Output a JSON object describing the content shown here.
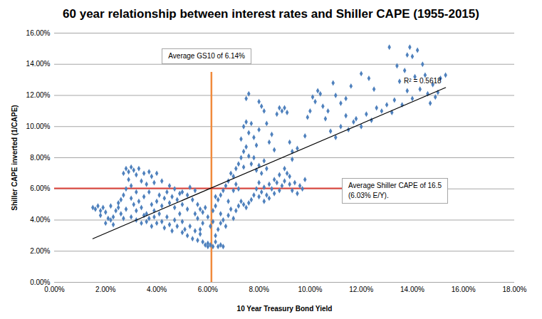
{
  "chart_data": {
    "type": "scatter",
    "title": "60 year relationship between interest rates and Shiller CAPE (1955-2015)",
    "x_label": "10 Year Treasury Bond Yield",
    "y_label": "Shiller CAPE inverted (1/CAPE)",
    "xlim": [
      0,
      18
    ],
    "ylim": [
      0,
      16
    ],
    "xticks": [
      {
        "value": 0,
        "label": "0.00%"
      },
      {
        "value": 2,
        "label": "2.00%"
      },
      {
        "value": 4,
        "label": "4.00%"
      },
      {
        "value": 6,
        "label": "6.00%"
      },
      {
        "value": 8,
        "label": "8.00%"
      },
      {
        "value": 10,
        "label": "10.00%"
      },
      {
        "value": 12,
        "label": "12.00%"
      },
      {
        "value": 14,
        "label": "14.00%"
      },
      {
        "value": 16,
        "label": "16.00%"
      },
      {
        "value": 18,
        "label": "18.00%"
      }
    ],
    "yticks": [
      {
        "value": 0,
        "label": "0.00%"
      },
      {
        "value": 2,
        "label": "2.00%"
      },
      {
        "value": 4,
        "label": "4.00%"
      },
      {
        "value": 6,
        "label": "6.00%"
      },
      {
        "value": 8,
        "label": "8.00%"
      },
      {
        "value": 10,
        "label": "10.00%"
      },
      {
        "value": 12,
        "label": "12.00%"
      },
      {
        "value": 14,
        "label": "14.00%"
      },
      {
        "value": 16,
        "label": "16.00%"
      }
    ],
    "grid": true,
    "marker": "diamond",
    "color": "#4f81bd",
    "x": [
      1.5,
      1.6,
      1.7,
      1.8,
      1.9,
      2.0,
      1.8,
      2.1,
      2.2,
      2.0,
      2.3,
      2.4,
      2.5,
      2.2,
      2.6,
      2.7,
      2.3,
      2.5,
      2.6,
      2.8,
      2.7,
      2.8,
      2.9,
      3.0,
      3.1,
      3.2,
      2.9,
      3.3,
      3.5,
      3.4,
      3.0,
      2.8,
      3.6,
      3.2,
      2.7,
      3.8,
      3.9,
      4.0,
      4.2,
      3.7,
      3.0,
      3.1,
      3.2,
      3.3,
      3.4,
      3.5,
      3.6,
      3.7,
      3.8,
      3.9,
      3.0,
      3.2,
      3.4,
      3.5,
      3.6,
      3.7,
      3.8,
      3.9,
      4.0,
      4.1,
      4.0,
      4.1,
      4.2,
      4.3,
      4.4,
      4.5,
      4.6,
      4.7,
      4.8,
      4.9,
      4.2,
      4.3,
      4.4,
      4.5,
      4.6,
      4.7,
      4.8,
      4.9,
      5.0,
      5.1,
      4.5,
      4.7,
      5.0,
      5.2,
      5.3,
      5.5,
      5.0,
      5.2,
      5.4,
      5.6,
      5.0,
      5.2,
      5.3,
      5.4,
      5.5,
      5.6,
      5.7,
      5.8,
      5.9,
      6.0,
      5.5,
      5.6,
      5.7,
      5.8,
      5.9,
      6.0,
      5.8,
      6.1,
      6.2,
      5.7,
      6.0,
      6.1,
      6.2,
      6.3,
      6.4,
      6.5,
      6.6,
      6.3,
      6.4,
      6.5,
      6.2,
      6.3,
      6.4,
      6.5,
      6.6,
      6.7,
      6.3,
      6.5,
      6.8,
      6.9,
      6.6,
      6.7,
      6.8,
      7.0,
      7.1,
      7.2,
      7.3,
      7.4,
      7.5,
      7.6,
      6.8,
      6.9,
      7.0,
      7.1,
      7.2,
      7.3,
      7.4,
      7.0,
      7.1,
      7.2,
      7.3,
      7.4,
      7.5,
      7.6,
      7.5,
      7.6,
      7.7,
      7.8,
      7.9,
      8.0,
      7.4,
      7.5,
      7.6,
      7.7,
      7.8,
      7.9,
      8.0,
      8.1,
      8.2,
      8.3,
      8.0,
      8.1,
      8.2,
      8.3,
      8.4,
      8.5,
      8.6,
      8.7,
      8.8,
      8.9,
      8.0,
      8.1,
      8.2,
      8.3,
      8.4,
      8.5,
      8.6,
      8.7,
      8.8,
      8.9,
      7.7,
      7.8,
      7.9,
      8.0,
      8.2,
      8.4,
      8.6,
      8.8,
      9.0,
      9.2,
      9.0,
      9.1,
      9.2,
      9.3,
      9.0,
      9.1,
      9.2,
      9.3,
      9.4,
      9.5,
      9.6,
      9.7,
      9.8,
      9.3,
      9.5,
      9.8,
      9.9,
      10.0,
      10.2,
      10.3,
      10.1,
      10.4,
      10.5,
      10.6,
      10.8,
      11.0,
      11.2,
      11.4,
      11.5,
      11.7,
      10.7,
      10.9,
      11.0,
      11.2,
      11.4,
      11.6,
      11.8,
      12.0,
      12.2,
      12.4,
      12.0,
      12.3,
      12.5,
      12.6,
      12.8,
      13.0,
      13.1,
      13.2,
      13.3,
      13.5,
      13.6,
      13.7,
      13.8,
      13.8,
      13.9,
      14.0,
      14.1,
      14.2,
      14.3,
      14.4,
      14.0,
      14.5,
      14.6,
      14.8,
      14.9,
      15.0,
      15.1,
      15.3,
      14.7,
      13.4
    ],
    "values": [
      4.8,
      4.7,
      4.9,
      4.6,
      4.8,
      4.5,
      4.3,
      4.1,
      4.0,
      3.8,
      4.2,
      4.6,
      4.8,
      4.9,
      4.4,
      4.1,
      3.7,
      5.1,
      5.3,
      4.7,
      7.0,
      7.3,
      7.1,
      7.4,
      7.2,
      6.9,
      6.6,
      7.3,
      7.0,
      6.5,
      6.2,
      6.0,
      6.3,
      5.8,
      5.6,
      6.8,
      6.4,
      7.0,
      6.5,
      7.1,
      5.4,
      5.0,
      4.6,
      5.2,
      4.8,
      5.5,
      4.4,
      5.8,
      5.0,
      4.6,
      4.2,
      4.0,
      3.8,
      4.3,
      3.9,
      4.1,
      3.6,
      4.2,
      3.8,
      4.4,
      5.2,
      5.6,
      4.9,
      5.4,
      5.8,
      5.1,
      5.5,
      4.8,
      5.3,
      5.7,
      3.9,
      3.5,
      4.2,
      3.7,
      3.3,
      4.0,
      3.6,
      4.4,
      3.9,
      3.4,
      6.2,
      6.0,
      5.8,
      5.6,
      6.1,
      5.9,
      5.0,
      4.7,
      5.3,
      5.0,
      3.2,
      3.0,
      3.6,
      2.8,
      3.3,
      2.7,
      3.1,
      2.6,
      2.4,
      2.5,
      4.4,
      4.1,
      4.7,
      4.5,
      4.8,
      4.2,
      3.8,
      3.6,
      3.9,
      3.4,
      2.3,
      2.4,
      2.3,
      2.6,
      2.3,
      2.4,
      2.3,
      3.0,
      3.4,
      3.8,
      4.6,
      4.9,
      5.3,
      5.6,
      5.9,
      6.2,
      5.5,
      4.4,
      5.2,
      4.7,
      4.0,
      3.6,
      4.3,
      4.1,
      4.6,
      4.9,
      5.2,
      5.0,
      4.8,
      5.1,
      6.5,
      7.0,
      6.8,
      7.3,
      7.6,
      8.0,
      7.4,
      5.9,
      6.3,
      6.0,
      9.2,
      10.0,
      11.8,
      12.1,
      10.3,
      9.6,
      10.2,
      9.3,
      8.8,
      9.8,
      8.4,
      8.7,
      8.1,
      7.6,
      8.0,
      7.2,
      7.5,
      7.0,
      7.8,
      7.3,
      11.6,
      11.3,
      11.0,
      10.2,
      9.0,
      9.5,
      8.5,
      10.8,
      11.2,
      11.0,
      5.5,
      5.8,
      6.1,
      5.6,
      6.3,
      6.0,
      6.6,
      6.4,
      6.9,
      6.2,
      5.3,
      5.6,
      6.0,
      6.4,
      5.2,
      5.4,
      5.7,
      5.9,
      6.5,
      6.8,
      11.2,
      10.9,
      9.0,
      8.4,
      7.3,
      7.0,
      6.3,
      5.9,
      6.4,
      5.7,
      6.2,
      6.0,
      6.6,
      7.9,
      8.6,
      9.4,
      10.6,
      11.0,
      11.6,
      12.3,
      11.9,
      12.1,
      11.3,
      10.5,
      9.7,
      9.3,
      10.0,
      10.7,
      9.8,
      10.3,
      11.0,
      12.8,
      12.0,
      11.5,
      11.8,
      12.6,
      10.5,
      10.0,
      10.8,
      10.4,
      13.4,
      13.1,
      12.4,
      11.2,
      11.0,
      11.4,
      15.1,
      10.9,
      11.7,
      12.9,
      11.4,
      13.6,
      14.6,
      12.3,
      15.1,
      14.5,
      13.2,
      14.9,
      12.4,
      14.0,
      11.8,
      13.3,
      12.1,
      12.7,
      11.9,
      12.2,
      13.1,
      13.3,
      11.5,
      13.9
    ],
    "trendline": {
      "x": [
        1.5,
        15.3
      ],
      "values": [
        2.8,
        12.5
      ],
      "color": "#000000",
      "label": "R² = 0.5618"
    },
    "reference_lines": [
      {
        "axis": "x",
        "value": 6.14,
        "color": "#f08a3c",
        "label": [
          "Average  GS10 of 6.14%"
        ]
      },
      {
        "axis": "y",
        "value": 6.03,
        "color": "#e0443c",
        "label": [
          "Average Shiller CAPE of 16.5",
          "(6.03% E/Y)."
        ]
      }
    ]
  }
}
